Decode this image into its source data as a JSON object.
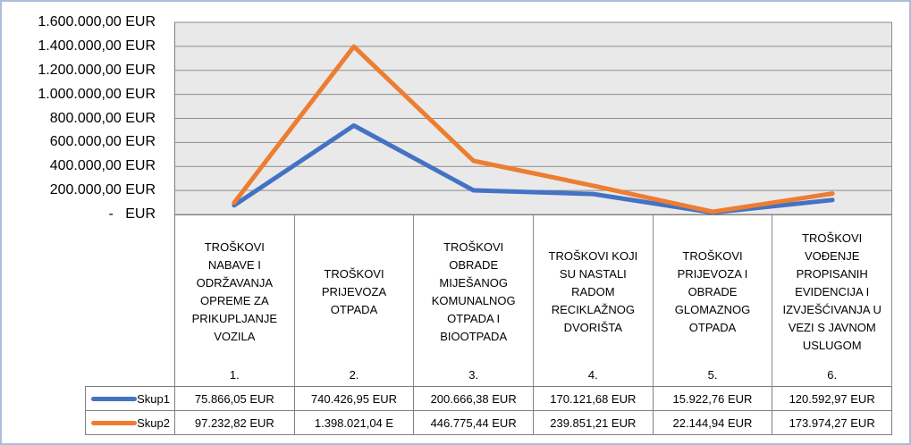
{
  "colors": {
    "series1": "#4472C4",
    "series2": "#ED7D31",
    "plot_fill": "#E9E9E9",
    "gridline": "#8C8C8C",
    "axis_line": "#808080",
    "frame_border": "#AEBCD9"
  },
  "chart_data": {
    "type": "line",
    "currency": "EUR",
    "grid": true,
    "legend_position": "table-left",
    "y_axis": {
      "min": 0,
      "max": 1600000,
      "step": 200000,
      "ticks": [
        "1.600.000,00 EUR",
        "1.400.000,00 EUR",
        "1.200.000,00 EUR",
        "1.000.000,00 EUR",
        "800.000,00 EUR",
        "600.000,00 EUR",
        "400.000,00 EUR",
        "200.000,00 EUR",
        "-   EUR"
      ]
    },
    "categories": [
      {
        "label": "TROŠKOVI NABAVE I ODRŽAVANJA OPREME ZA PRIKUPLJANJE VOZILA",
        "index": "1."
      },
      {
        "label": "TROŠKOVI PRIJEVOZA OTPADA",
        "index": "2."
      },
      {
        "label": "TROŠKOVI OBRADE MIJEŠANOG KOMUNALNOG OTPADA I BIOOTPADA",
        "index": "3."
      },
      {
        "label": "TROŠKOVI KOJI SU NASTALI RADOM RECIKLAŽNOG DVORIŠTA",
        "index": "4."
      },
      {
        "label": "TROŠKOVI PRIJEVOZA I OBRADE GLOMAZNOG OTPADA",
        "index": "5."
      },
      {
        "label": "TROŠKOVI VOĐENJE PROPISANIH EVIDENCIJA I IZVJEŠĆIVANJA U VEZI S JAVNOM USLUGOM",
        "index": "6."
      }
    ],
    "series": [
      {
        "name": "Skup1",
        "color": "#4472C4",
        "values": [
          75866.05,
          740426.95,
          200666.38,
          170121.68,
          15922.76,
          120592.97
        ],
        "display_values": [
          "75.866,05 EUR",
          "740.426,95 EUR",
          "200.666,38 EUR",
          "170.121,68 EUR",
          "15.922,76 EUR",
          "120.592,97 EUR"
        ]
      },
      {
        "name": "Skup2",
        "color": "#ED7D31",
        "values": [
          97232.82,
          1398021.04,
          446775.44,
          239851.21,
          22144.94,
          173974.27
        ],
        "display_values": [
          "97.232,82 EUR",
          "1.398.021,04 E",
          "446.775,44 EUR",
          "239.851,21 EUR",
          "22.144,94 EUR",
          "173.974,27 EUR"
        ]
      }
    ]
  }
}
